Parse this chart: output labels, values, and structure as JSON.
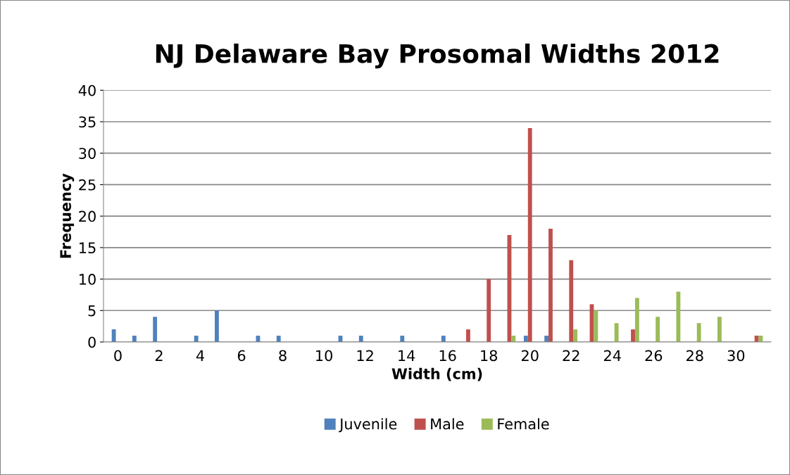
{
  "chart_data": {
    "type": "bar",
    "title": "NJ Delaware Bay Prosomal Widths 2012",
    "xlabel": "Width (cm)",
    "ylabel": "Frequency",
    "categories": [
      "0",
      null,
      "2",
      null,
      "4",
      null,
      "6",
      null,
      "8",
      null,
      "10",
      null,
      "12",
      null,
      "14",
      null,
      "16",
      null,
      "18",
      null,
      "20",
      null,
      "22",
      null,
      "24",
      null,
      "26",
      null,
      "28",
      null,
      "30",
      null
    ],
    "series": [
      {
        "name": "Juvenile",
        "color": "#4f81bd",
        "values": [
          2,
          1,
          4,
          0,
          1,
          5,
          0,
          1,
          1,
          0,
          0,
          1,
          1,
          0,
          1,
          0,
          1,
          0,
          0,
          0,
          1,
          1,
          0,
          0,
          0,
          0,
          0,
          0,
          0,
          0,
          0,
          0
        ]
      },
      {
        "name": "Male",
        "color": "#c0504d",
        "values": [
          0,
          0,
          0,
          0,
          0,
          0,
          0,
          0,
          0,
          0,
          0,
          0,
          0,
          0,
          0,
          0,
          0,
          2,
          10,
          17,
          34,
          18,
          13,
          6,
          0,
          2,
          0,
          0,
          0,
          0,
          0,
          1
        ]
      },
      {
        "name": "Female",
        "color": "#9bbb59",
        "values": [
          0,
          0,
          0,
          0,
          0,
          0,
          0,
          0,
          0,
          0,
          0,
          0,
          0,
          0,
          0,
          0,
          0,
          0,
          0,
          1,
          0,
          0,
          2,
          5,
          3,
          7,
          4,
          8,
          3,
          4,
          0,
          1
        ]
      }
    ],
    "ylim": [
      0,
      40
    ],
    "yticks": [
      0,
      5,
      10,
      15,
      20,
      25,
      30,
      35,
      40
    ],
    "grid": "y",
    "legend": "bottom"
  }
}
